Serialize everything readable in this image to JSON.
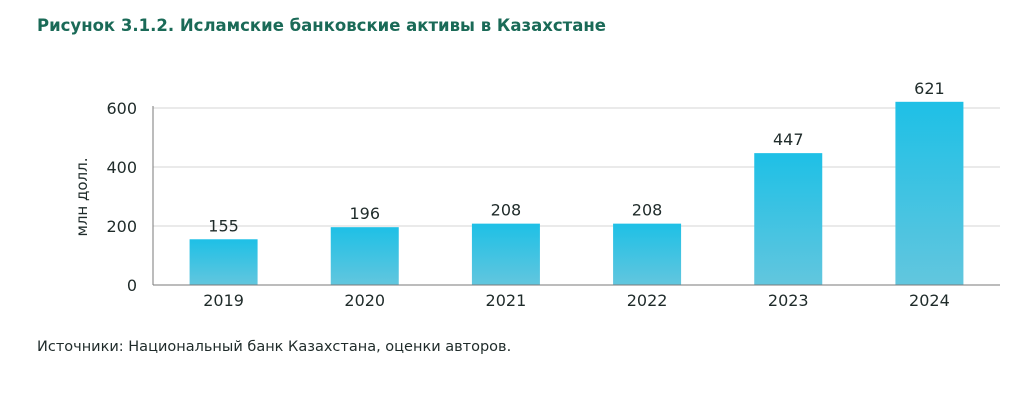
{
  "figure_title": "Рисунок 3.1.2. Исламские банковские активы в Казахстане",
  "source_note": "Источники: Национальный банк Казахстана, оценки авторов.",
  "colors": {
    "title": "#1a6a57",
    "bar_top": "#1ec0e6",
    "bar_bottom": "#62c6de",
    "grid": "#d6d6d6",
    "axis": "#7a7a7a"
  },
  "chart_data": {
    "type": "bar",
    "categories": [
      "2019",
      "2020",
      "2021",
      "2022",
      "2023",
      "2024"
    ],
    "values": [
      155,
      196,
      208,
      208,
      447,
      621
    ],
    "data_labels": [
      "155",
      "196",
      "208",
      "208",
      "447",
      "621"
    ],
    "ylabel": "млн долл.",
    "xlabel": "",
    "ylim": [
      0,
      600
    ],
    "yticks": [
      0,
      200,
      400,
      600
    ],
    "grid": true,
    "legend": "none"
  }
}
